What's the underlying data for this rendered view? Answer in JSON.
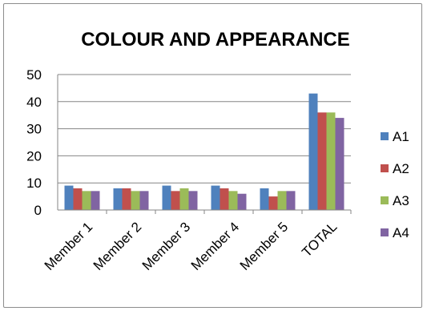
{
  "chart_data": {
    "type": "bar",
    "title": "COLOUR AND APPEARANCE",
    "xlabel": "",
    "ylabel": "",
    "categories": [
      "Member 1",
      "Member 2",
      "Member 3",
      "Member 4",
      "Member 5",
      "TOTAL"
    ],
    "ylim": [
      0,
      50
    ],
    "yticks": [
      "0",
      "10",
      "20",
      "30",
      "40",
      "50"
    ],
    "grid": true,
    "legend_position": "right",
    "series": [
      {
        "name": "A1",
        "color": "#4f81bd",
        "values": [
          9,
          8,
          9,
          9,
          8,
          43
        ]
      },
      {
        "name": "A2",
        "color": "#c0504d",
        "values": [
          8,
          8,
          7,
          8,
          5,
          36
        ]
      },
      {
        "name": "A3",
        "color": "#9bbb59",
        "values": [
          7,
          7,
          8,
          7,
          7,
          36
        ]
      },
      {
        "name": "A4",
        "color": "#8064a2",
        "values": [
          7,
          7,
          7,
          6,
          7,
          34
        ]
      }
    ]
  }
}
